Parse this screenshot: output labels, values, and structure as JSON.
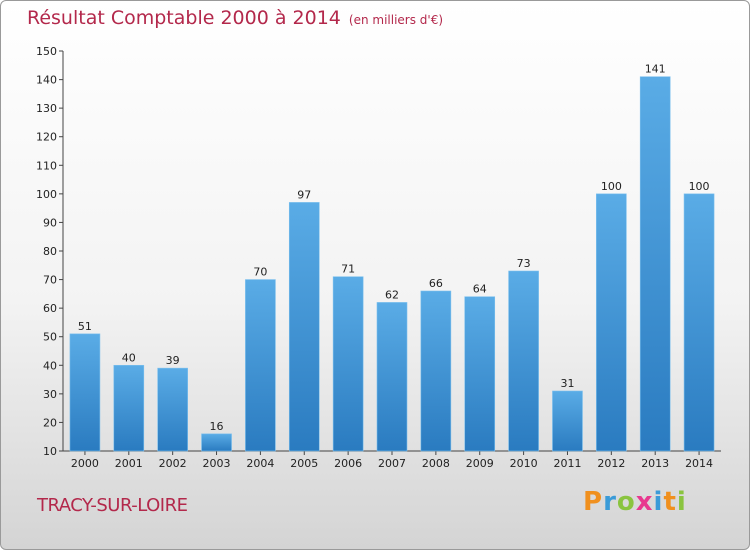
{
  "title": "Résultat Comptable 2000 à 2014",
  "unit": "(en milliers d'€)",
  "city": "TRACY-SUR-LOIRE",
  "logo": {
    "letters": [
      "P",
      "r",
      "o",
      "x",
      "i",
      "t",
      "i"
    ],
    "colors": [
      "#f0901e",
      "#3a9bd8",
      "#8ac43f",
      "#e8388f",
      "#3a9bd8",
      "#f0901e",
      "#8ac43f"
    ]
  },
  "colors": {
    "bar_light": "#5aace6",
    "bar_dark": "#2a7bc0",
    "title": "#b3284b"
  },
  "chart_data": {
    "type": "bar",
    "title": "Résultat Comptable 2000 à 2014",
    "ylabel": "",
    "xlabel": "",
    "categories": [
      "2000",
      "2001",
      "2002",
      "2003",
      "2004",
      "2005",
      "2006",
      "2007",
      "2008",
      "2009",
      "2010",
      "2011",
      "2012",
      "2013",
      "2014"
    ],
    "values": [
      51,
      40,
      39,
      16,
      70,
      97,
      71,
      62,
      66,
      64,
      73,
      31,
      100,
      141,
      100
    ],
    "ylim": [
      10,
      150
    ],
    "yticks": [
      10,
      20,
      30,
      40,
      50,
      60,
      70,
      80,
      90,
      100,
      110,
      120,
      130,
      140,
      150
    ],
    "grid": false
  }
}
